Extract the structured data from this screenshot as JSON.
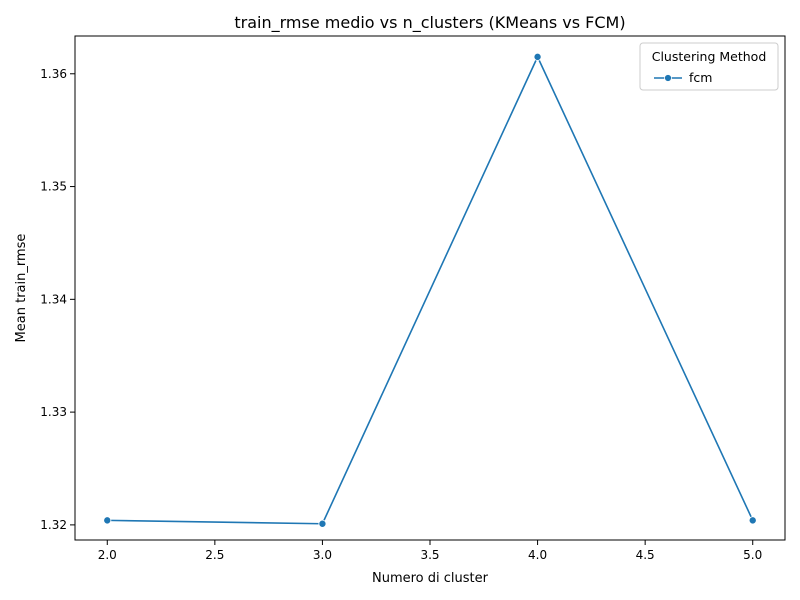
{
  "chart_data": {
    "type": "line",
    "title": "train_rmse medio vs n_clusters (KMeans vs FCM)",
    "xlabel": "Numero di cluster",
    "ylabel": "Mean train_rmse",
    "xlim": [
      1.85,
      5.15
    ],
    "ylim": [
      1.31866,
      1.36335
    ],
    "xticks": [
      "2.0",
      "2.5",
      "3.0",
      "3.5",
      "4.0",
      "4.5",
      "5.0"
    ],
    "yticks": [
      "1.32",
      "1.33",
      "1.34",
      "1.35",
      "1.36"
    ],
    "grid": false,
    "legend": {
      "title": "Clustering Method",
      "placement": "top-right"
    },
    "series": [
      {
        "name": "fcm",
        "color": "#1f77b4",
        "marker": "circle",
        "x": [
          2,
          3,
          4,
          5
        ],
        "y": [
          1.3204,
          1.3201,
          1.3615,
          1.3204
        ]
      }
    ]
  }
}
